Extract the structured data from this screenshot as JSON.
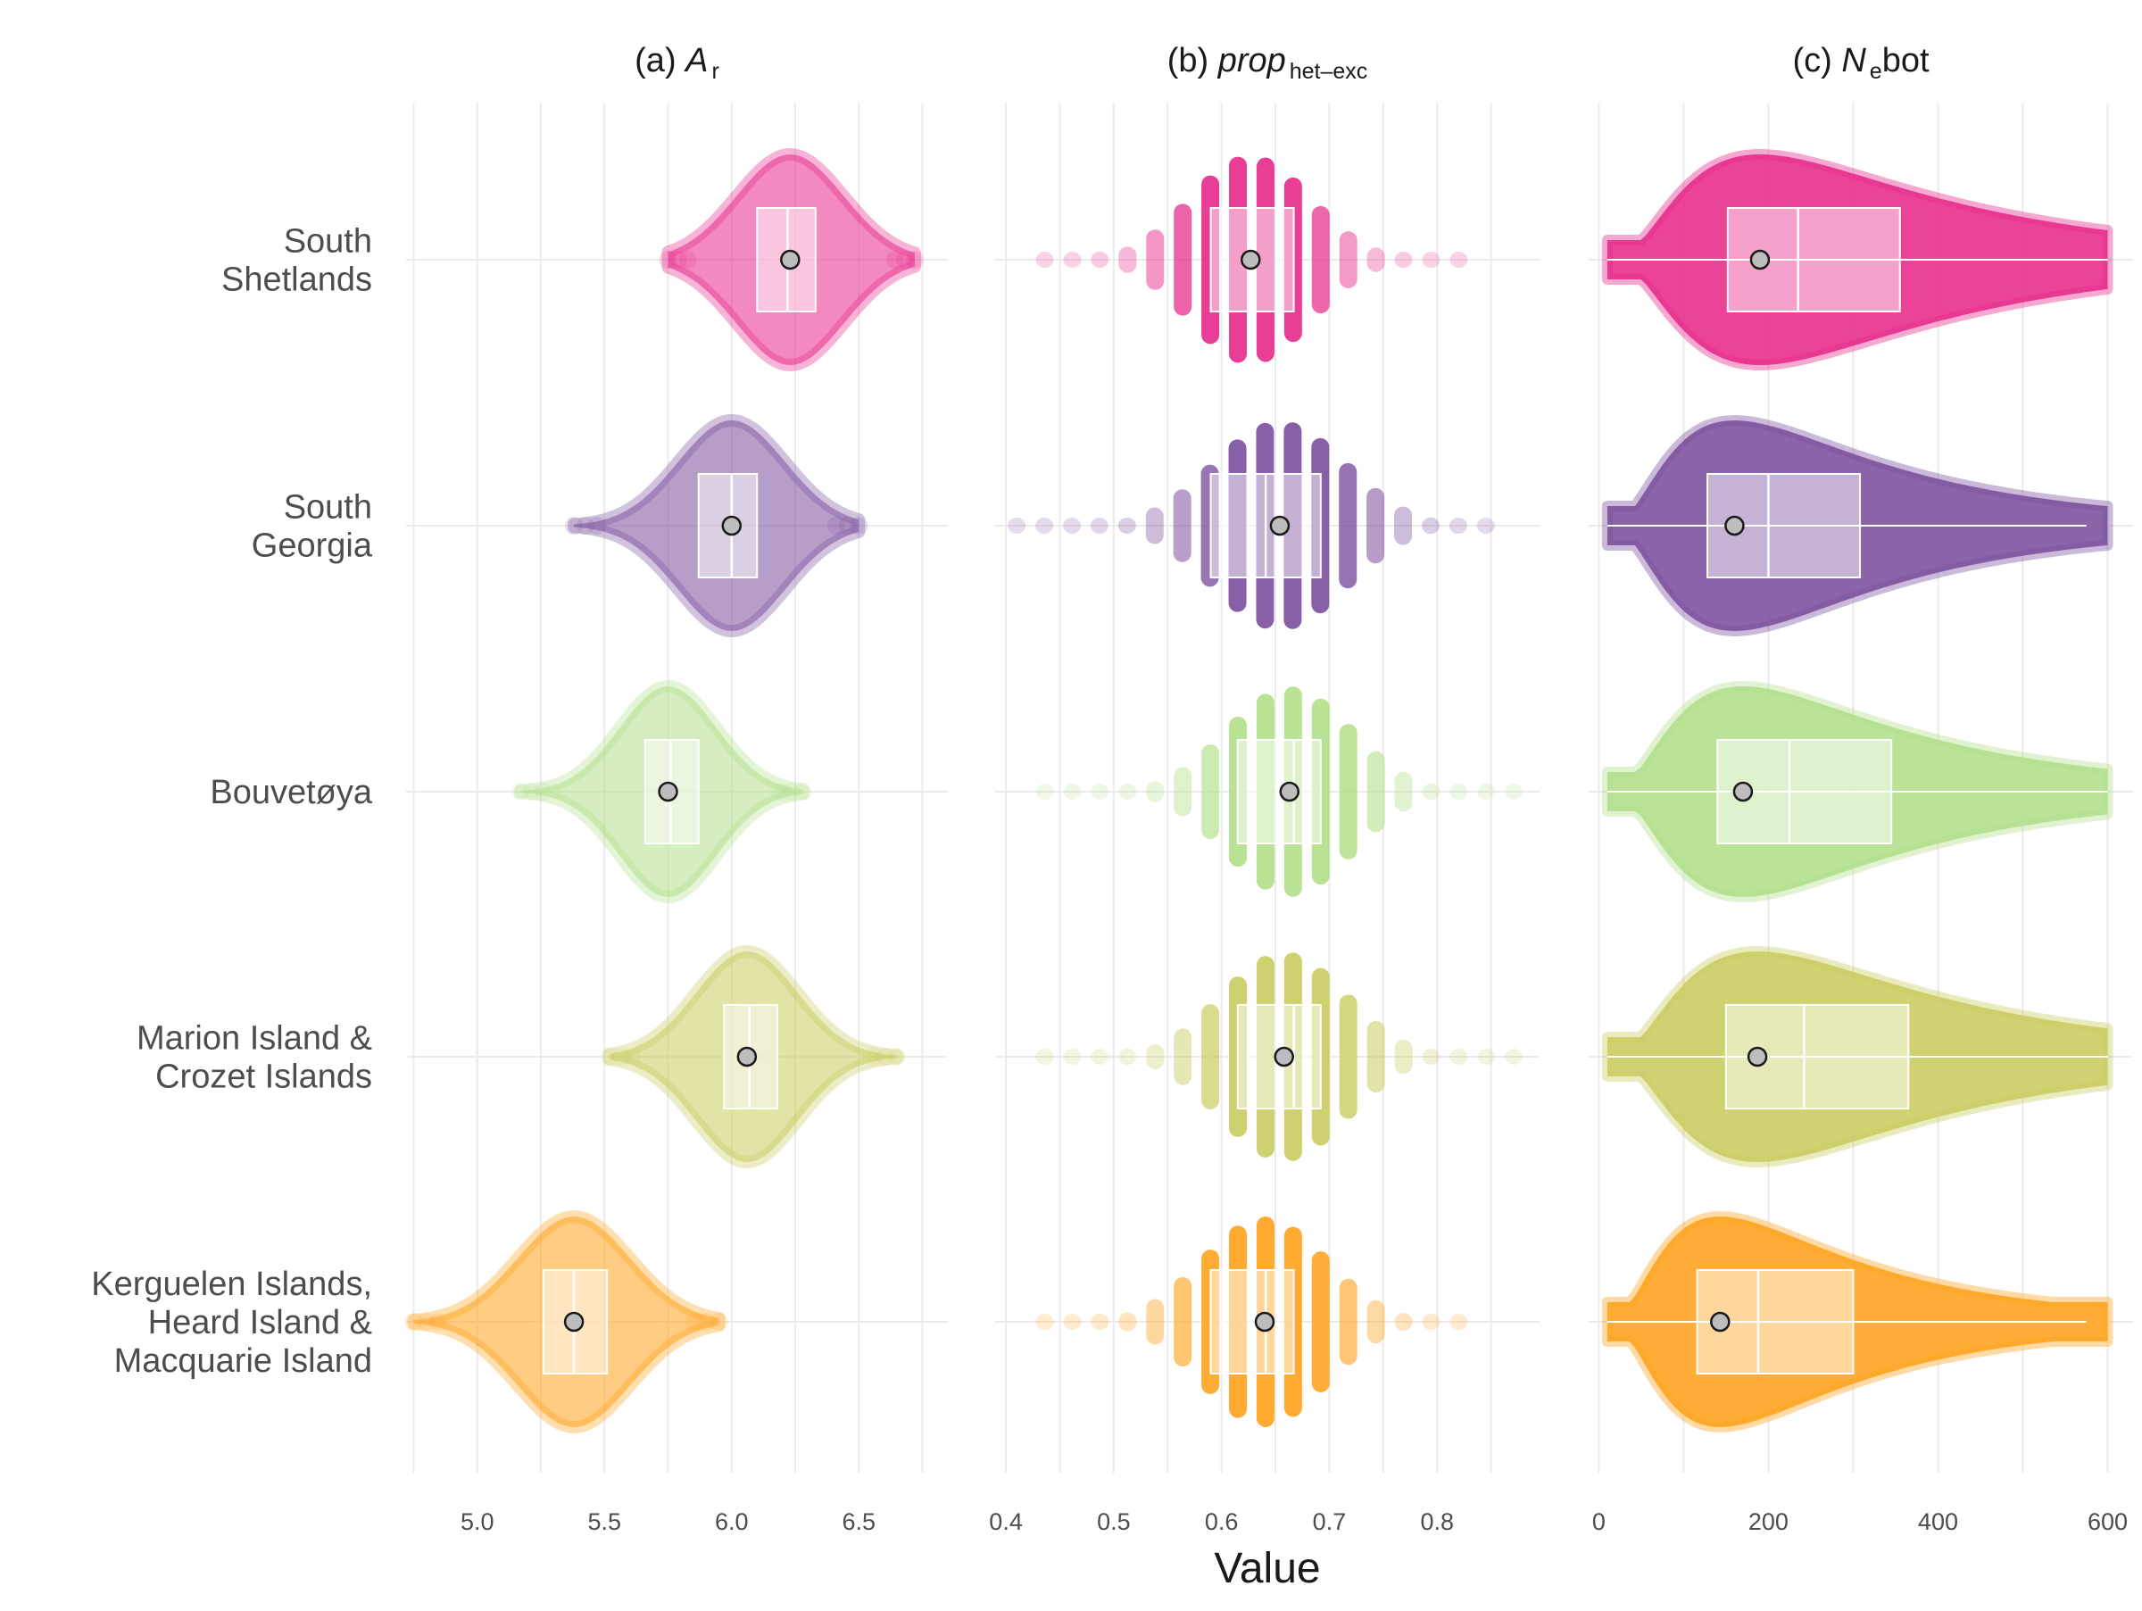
{
  "chart_data": [
    {
      "type": "violin-box",
      "title_prefix": "(a) ",
      "title_main": "A",
      "title_sub": "r",
      "title_suffix": "",
      "categories": [
        "South Shetlands",
        "South Georgia",
        "Bouvetøya",
        "Marion Island & Crozet Islands",
        "Kerguelen Islands, Heard Island & Macquarie Island"
      ],
      "xlim": [
        4.72,
        6.85
      ],
      "xticks": [
        5.0,
        5.5,
        6.0,
        6.5
      ],
      "xtick_labels": [
        "5.0",
        "5.5",
        "6.0",
        "6.5"
      ],
      "grid": true,
      "series": [
        {
          "q1": 6.1,
          "median": 6.22,
          "q3": 6.33,
          "mean": 6.23,
          "density_min": 5.75,
          "density_max": 6.72,
          "spread": 0.21
        },
        {
          "q1": 5.87,
          "median": 6.0,
          "q3": 6.1,
          "mean": 6.0,
          "density_min": 5.38,
          "density_max": 6.5,
          "spread": 0.21
        },
        {
          "q1": 5.66,
          "median": 5.76,
          "q3": 5.87,
          "mean": 5.75,
          "density_min": 5.17,
          "density_max": 6.28,
          "spread": 0.19
        },
        {
          "q1": 5.97,
          "median": 6.07,
          "q3": 6.18,
          "mean": 6.06,
          "density_min": 5.52,
          "density_max": 6.65,
          "spread": 0.2
        },
        {
          "q1": 5.26,
          "median": 5.38,
          "q3": 5.51,
          "mean": 5.38,
          "density_min": 4.75,
          "density_max": 5.95,
          "spread": 0.22
        }
      ]
    },
    {
      "type": "violin-box",
      "title_prefix": "(b) ",
      "title_main": "prop",
      "title_sub": "het–exc",
      "title_suffix": "",
      "categories": [
        "South Shetlands",
        "South Georgia",
        "Bouvetøya",
        "Marion Island & Crozet Islands",
        "Kerguelen Islands, Heard Island & Macquarie Island"
      ],
      "xlim": [
        0.39,
        0.895
      ],
      "xticks": [
        0.4,
        0.5,
        0.6,
        0.7,
        0.8
      ],
      "xtick_labels": [
        "0.4",
        "0.5",
        "0.6",
        "0.7",
        "0.8"
      ],
      "grid": true,
      "series": [
        {
          "q1": 0.59,
          "median": 0.625,
          "q3": 0.667,
          "mean": 0.627,
          "density_min": 0.436,
          "density_max": 0.821,
          "spread": 0.056,
          "step": 0.0256
        },
        {
          "q1": 0.59,
          "median": 0.641,
          "q3": 0.692,
          "mean": 0.654,
          "density_min": 0.41,
          "density_max": 0.846,
          "spread": 0.062,
          "step": 0.0256
        },
        {
          "q1": 0.615,
          "median": 0.667,
          "q3": 0.692,
          "mean": 0.663,
          "density_min": 0.436,
          "density_max": 0.872,
          "spread": 0.058,
          "step": 0.0256
        },
        {
          "q1": 0.615,
          "median": 0.667,
          "q3": 0.692,
          "mean": 0.658,
          "density_min": 0.436,
          "density_max": 0.872,
          "spread": 0.058,
          "step": 0.0256
        },
        {
          "q1": 0.59,
          "median": 0.641,
          "q3": 0.667,
          "mean": 0.64,
          "density_min": 0.436,
          "density_max": 0.821,
          "spread": 0.058,
          "step": 0.0256
        }
      ]
    },
    {
      "type": "violin-box",
      "title_prefix": "(c) ",
      "title_main": "N",
      "title_sub": "e",
      "title_suffix": "bot",
      "categories": [
        "South Shetlands",
        "South Georgia",
        "Bouvetøya",
        "Marion Island & Crozet Islands",
        "Kerguelen Islands, Heard Island & Macquarie Island"
      ],
      "xlim": [
        -12,
        630
      ],
      "xticks": [
        0,
        200,
        400,
        600
      ],
      "xtick_labels": [
        "0",
        "200",
        "400",
        "600"
      ],
      "grid": true,
      "series": [
        {
          "q1": 152,
          "median": 235,
          "q3": 355,
          "mean": 190,
          "density_min": 10,
          "density_max": 600,
          "whisker_max": 600,
          "peak": 190
        },
        {
          "q1": 128,
          "median": 200,
          "q3": 308,
          "mean": 160,
          "density_min": 10,
          "density_max": 600,
          "whisker_max": 575,
          "peak": 160
        },
        {
          "q1": 140,
          "median": 225,
          "q3": 345,
          "mean": 170,
          "density_min": 10,
          "density_max": 600,
          "whisker_max": 600,
          "peak": 170
        },
        {
          "q1": 150,
          "median": 242,
          "q3": 365,
          "mean": 187,
          "density_min": 10,
          "density_max": 600,
          "whisker_max": 600,
          "peak": 187
        },
        {
          "q1": 116,
          "median": 188,
          "q3": 300,
          "mean": 143,
          "density_min": 10,
          "density_max": 600,
          "whisker_max": 575,
          "peak": 143
        }
      ]
    }
  ],
  "category_labels": [
    [
      "South",
      "Shetlands"
    ],
    [
      "South",
      "Georgia"
    ],
    [
      "Bouvetøya"
    ],
    [
      "Marion Island &",
      "Crozet Islands"
    ],
    [
      "Kerguelen Islands,",
      "Heard Island &",
      "Macquarie Island"
    ]
  ],
  "colors": [
    "#e7298a",
    "#7b4f9d",
    "#b2df8a",
    "#c9cc5f",
    "#ffa21c"
  ],
  "xlabel": "Value"
}
